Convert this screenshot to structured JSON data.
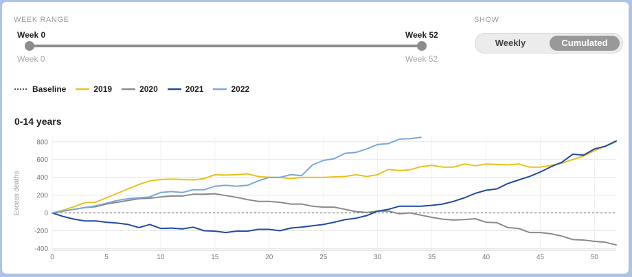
{
  "week_range": {
    "title": "WEEK RANGE",
    "start_label": "Week 0",
    "end_label": "Week 52",
    "start_sub": "Week 0",
    "end_sub": "Week 52",
    "start_week": 0,
    "end_week": 52
  },
  "show": {
    "title": "SHOW",
    "options": [
      "Weekly",
      "Cumulated"
    ],
    "selected": "Cumulated"
  },
  "legend": [
    {
      "label": "Baseline",
      "color": "#555555",
      "style": "dotted"
    },
    {
      "label": "2019",
      "color": "#e7c21a",
      "style": "solid"
    },
    {
      "label": "2020",
      "color": "#8a8a8a",
      "style": "solid"
    },
    {
      "label": "2021",
      "color": "#1f4aa3",
      "style": "solid"
    },
    {
      "label": "2022",
      "color": "#7aa6dc",
      "style": "solid"
    }
  ],
  "age_group": "0-14 years",
  "chart_data": {
    "type": "line",
    "ylabel": "Excess deaths",
    "xlabel": "",
    "xlim": [
      0,
      52
    ],
    "ylim": [
      -420,
      860
    ],
    "x_ticks": [
      0,
      5,
      10,
      15,
      20,
      25,
      30,
      35,
      40,
      45,
      50
    ],
    "y_ticks": [
      -400,
      -200,
      0,
      200,
      400,
      600,
      800
    ],
    "grid": true,
    "baseline": 0,
    "series": [
      {
        "name": "2019",
        "color": "#e7c21a",
        "x": [
          0,
          1,
          2,
          3,
          4,
          5,
          6,
          7,
          8,
          9,
          10,
          11,
          12,
          13,
          14,
          15,
          16,
          17,
          18,
          19,
          20,
          21,
          22,
          23,
          24,
          25,
          26,
          27,
          28,
          29,
          30,
          31,
          32,
          33,
          34,
          35,
          36,
          37,
          38,
          39,
          40,
          41,
          42,
          43,
          44,
          45,
          46,
          47,
          48,
          49,
          50,
          51,
          52
        ],
        "values": [
          0,
          30,
          70,
          115,
          120,
          170,
          220,
          270,
          320,
          360,
          375,
          380,
          375,
          370,
          385,
          430,
          425,
          430,
          440,
          410,
          400,
          400,
          385,
          400,
          400,
          400,
          405,
          410,
          430,
          410,
          430,
          490,
          475,
          485,
          520,
          535,
          515,
          515,
          550,
          530,
          550,
          545,
          540,
          550,
          515,
          515,
          535,
          560,
          600,
          640,
          700,
          750,
          800
        ]
      },
      {
        "name": "2020",
        "color": "#8a8a8a",
        "x": [
          0,
          1,
          2,
          3,
          4,
          5,
          6,
          7,
          8,
          9,
          10,
          11,
          12,
          13,
          14,
          15,
          16,
          17,
          18,
          19,
          20,
          21,
          22,
          23,
          24,
          25,
          26,
          27,
          28,
          29,
          30,
          31,
          32,
          33,
          34,
          35,
          36,
          37,
          38,
          39,
          40,
          41,
          42,
          43,
          44,
          45,
          46,
          47,
          48,
          49,
          50,
          51,
          52
        ],
        "values": [
          0,
          20,
          40,
          60,
          70,
          100,
          120,
          140,
          160,
          165,
          180,
          190,
          190,
          210,
          210,
          215,
          195,
          175,
          150,
          130,
          130,
          120,
          100,
          100,
          75,
          65,
          65,
          40,
          15,
          5,
          20,
          20,
          -10,
          0,
          -25,
          -50,
          -70,
          -80,
          -75,
          -65,
          -105,
          -110,
          -165,
          -175,
          -220,
          -220,
          -235,
          -260,
          -300,
          -305,
          -320,
          -330,
          -360
        ]
      },
      {
        "name": "2021",
        "color": "#1f4aa3",
        "x": [
          0,
          1,
          2,
          3,
          4,
          5,
          6,
          7,
          8,
          9,
          10,
          11,
          12,
          13,
          14,
          15,
          16,
          17,
          18,
          19,
          20,
          21,
          22,
          23,
          24,
          25,
          26,
          27,
          28,
          29,
          30,
          31,
          32,
          33,
          34,
          35,
          36,
          37,
          38,
          39,
          40,
          41,
          42,
          43,
          44,
          45,
          46,
          47,
          48,
          49,
          50,
          51,
          52
        ],
        "values": [
          0,
          -40,
          -70,
          -90,
          -90,
          -105,
          -115,
          -130,
          -165,
          -130,
          -175,
          -170,
          -180,
          -160,
          -200,
          -205,
          -220,
          -205,
          -205,
          -185,
          -185,
          -200,
          -170,
          -160,
          -145,
          -130,
          -105,
          -75,
          -60,
          -30,
          20,
          40,
          75,
          75,
          75,
          85,
          100,
          130,
          170,
          220,
          255,
          270,
          330,
          370,
          410,
          460,
          520,
          570,
          660,
          650,
          720,
          750,
          810
        ]
      },
      {
        "name": "2022",
        "color": "#7aa6dc",
        "x": [
          0,
          1,
          2,
          3,
          4,
          5,
          6,
          7,
          8,
          9,
          10,
          11,
          12,
          13,
          14,
          15,
          16,
          17,
          18,
          19,
          20,
          21,
          22,
          23,
          24,
          25,
          26,
          27,
          28,
          29,
          30,
          31,
          32,
          33,
          34
        ],
        "values": [
          0,
          20,
          40,
          60,
          80,
          110,
          140,
          160,
          170,
          180,
          230,
          240,
          230,
          260,
          260,
          300,
          310,
          300,
          310,
          360,
          400,
          400,
          430,
          420,
          540,
          590,
          610,
          670,
          680,
          720,
          770,
          780,
          830,
          835,
          850
        ]
      }
    ]
  }
}
